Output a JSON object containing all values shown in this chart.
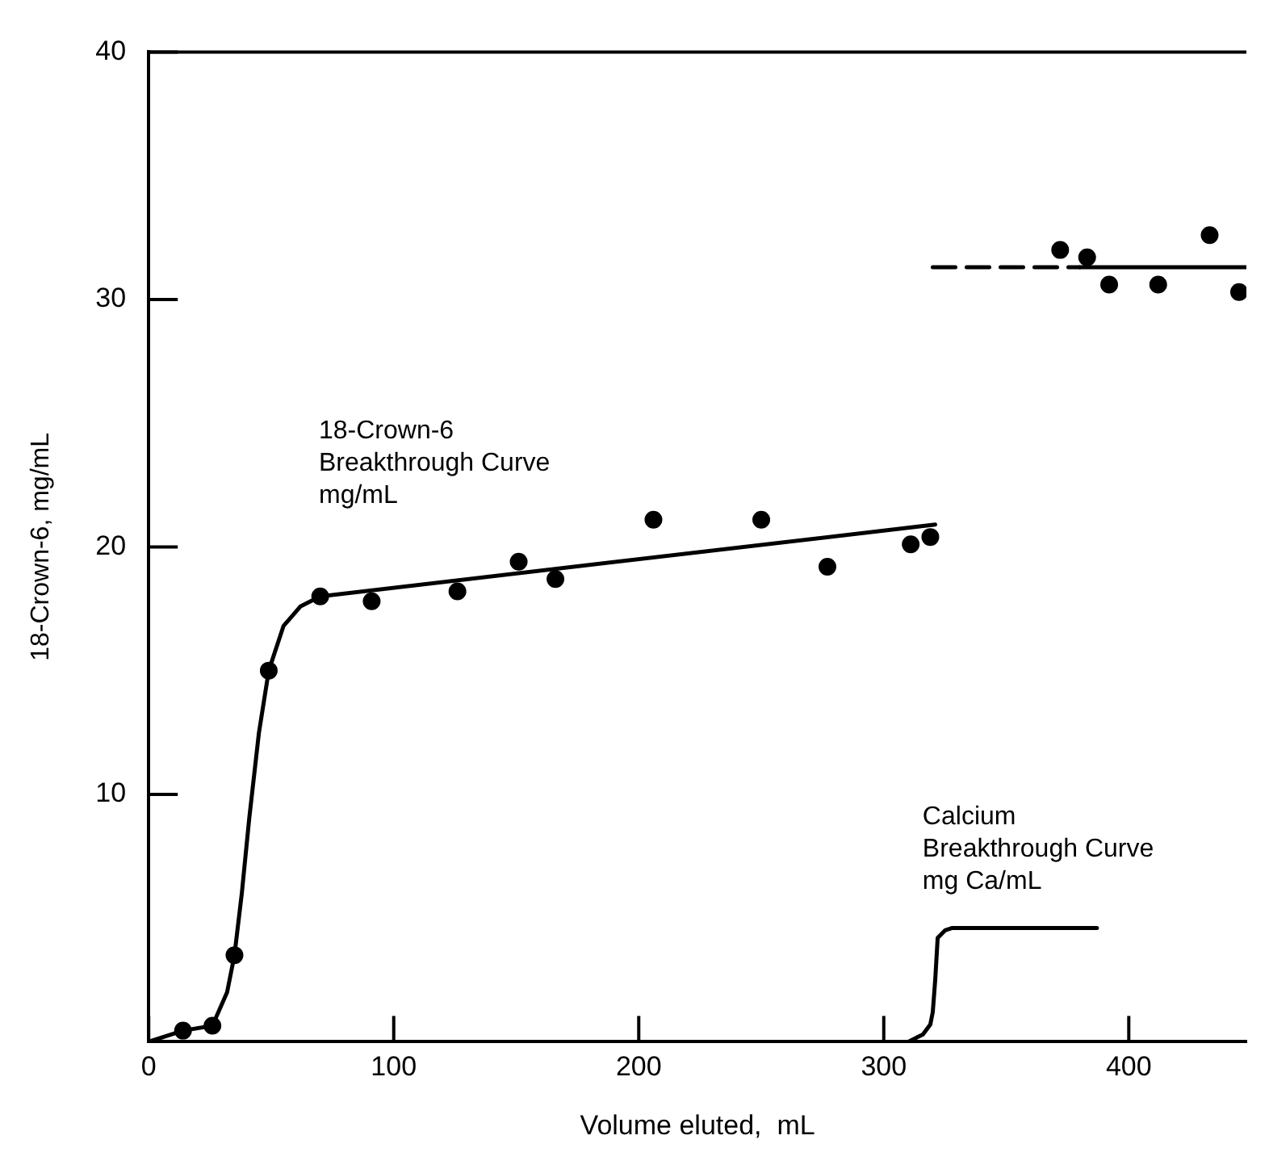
{
  "chart_data": {
    "type": "scatter",
    "xlabel": "Volume eluted,  mL",
    "ylabel": "18-Crown-6, mg/mL",
    "xlim": [
      0,
      448
    ],
    "ylim": [
      0,
      40
    ],
    "xticks": [
      0,
      100,
      200,
      300,
      400
    ],
    "yticks": [
      10,
      20,
      30,
      40
    ],
    "grid": false,
    "legend": false,
    "marker": "circle",
    "series": [
      {
        "color": "#000000",
        "x": [
          14,
          26,
          35,
          49,
          70,
          91,
          126,
          151,
          166,
          206,
          250,
          277,
          311,
          319,
          372,
          383,
          392,
          412,
          433,
          445
        ],
        "values": [
          0.45,
          0.65,
          3.5,
          15,
          18,
          17.8,
          18.2,
          19.4,
          18.7,
          21.1,
          21.1,
          19.2,
          20.1,
          20.4,
          32,
          31.7,
          30.6,
          30.6,
          32.6,
          30.3
        ]
      },
      {
        "type": "line",
        "color": "#000000",
        "marker": "none",
        "line_style": "solid",
        "x": [
          0,
          14,
          26,
          32,
          35,
          38,
          41,
          45,
          49,
          55,
          62,
          70,
          321
        ],
        "values": [
          0,
          0.45,
          0.65,
          2,
          3.5,
          6,
          9,
          12.5,
          15,
          16.8,
          17.6,
          18,
          20.9
        ]
      },
      {
        "type": "line",
        "color": "#000000",
        "marker": "none",
        "line_style": "dashed",
        "x": [
          320,
          380
        ],
        "values": [
          31.3,
          31.3
        ]
      },
      {
        "type": "line",
        "color": "#000000",
        "marker": "none",
        "line_style": "solid",
        "x": [
          380,
          448
        ],
        "values": [
          31.3,
          31.3
        ]
      },
      {
        "type": "line",
        "color": "#000000",
        "marker": "none",
        "line_style": "solid",
        "x": [
          310,
          316,
          319,
          320,
          321,
          322,
          325,
          328,
          387
        ],
        "values": [
          0,
          0.3,
          0.7,
          1.2,
          2.5,
          4.2,
          4.5,
          4.6,
          4.6
        ]
      }
    ],
    "annotations": [
      "18-Crown-6\nBreakthrough Curve\nmg/mL",
      "Calcium\nBreakthrough Curve\nmg Ca/mL"
    ]
  }
}
